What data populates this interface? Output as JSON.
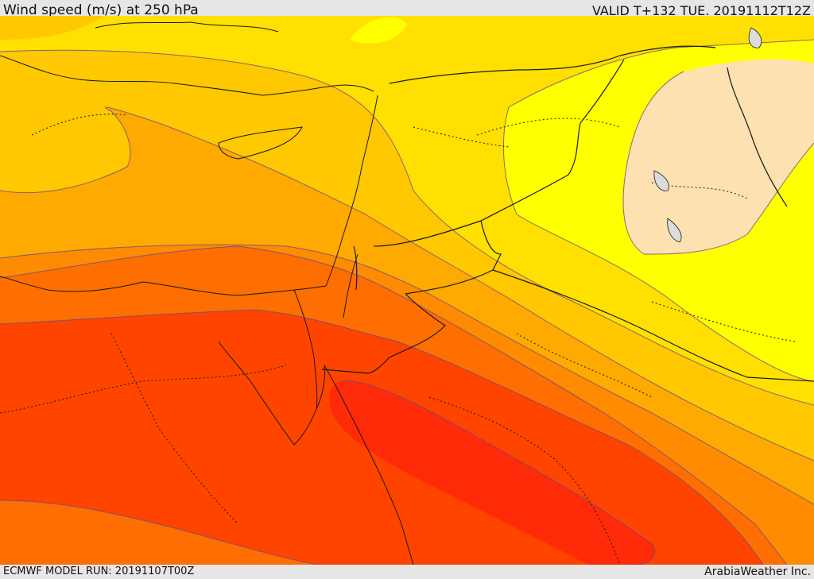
{
  "header": {
    "title": "Wind speed (m/s) at 250 hPa",
    "valid": "VALID T+132 TUE. 20191112T12Z"
  },
  "footer": {
    "model_run": "ECMWF MODEL RUN: 20191107T00Z",
    "credit": "ArabiaWeather Inc."
  },
  "map": {
    "variable": "wind speed at 250 hPa",
    "colors": {
      "lowest": "#fde1b0",
      "very_light": "#ffff00",
      "light": "#ffe000",
      "moderate_light": "#ffc800",
      "moderate": "#ffaa00",
      "strong_light": "#ff8c00",
      "strong": "#ff6e00",
      "very_strong": "#ff4400",
      "jet_core": "#ff2a08",
      "lake": "#dcdcdc"
    }
  }
}
